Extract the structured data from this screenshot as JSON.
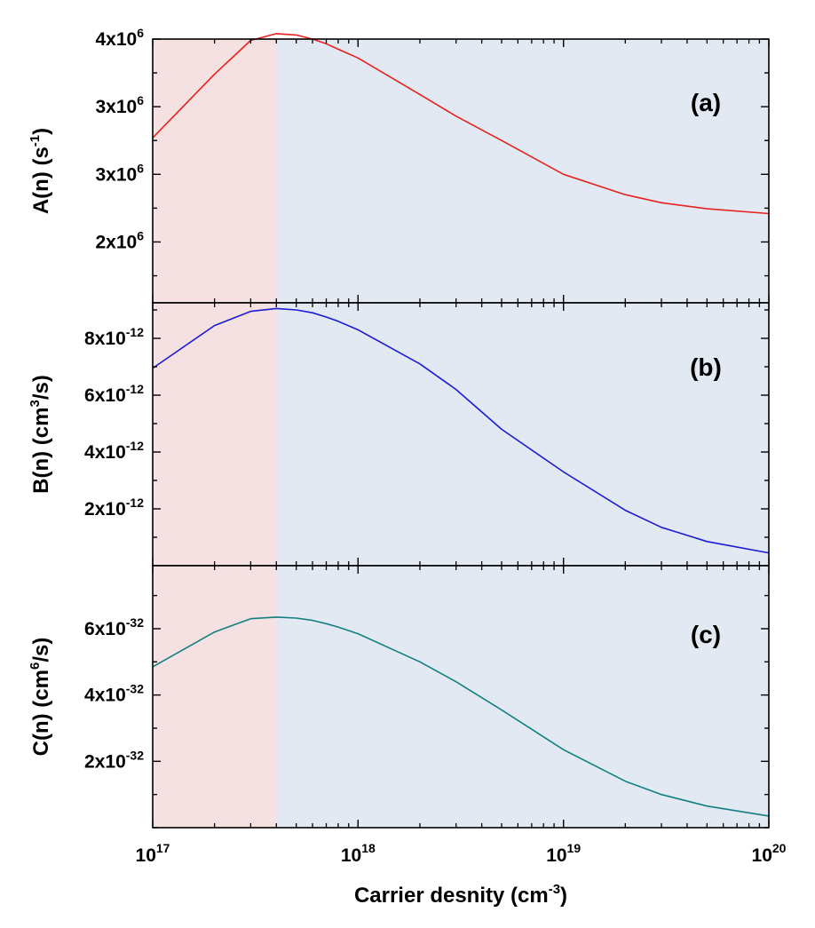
{
  "colors": {
    "shade_left": "#f5e1e1",
    "shade_right": "#e2e9f3",
    "series_a": "#e8211c",
    "series_b": "#1b1bd6",
    "series_c": "#128080",
    "axis": "#000000"
  },
  "x_axis": {
    "label_main": "Carrier desnity (cm",
    "label_exp": "-3",
    "label_close": ")",
    "scale": "log",
    "xlim": [
      1e+17,
      1e+20
    ],
    "ticks": [
      {
        "base": "10",
        "exp": "17",
        "value": 1e+17
      },
      {
        "base": "10",
        "exp": "18",
        "value": 1e+18
      },
      {
        "base": "10",
        "exp": "19",
        "value": 1e+19
      },
      {
        "base": "10",
        "exp": "20",
        "value": 1e+20
      }
    ]
  },
  "shade_boundary_x": 4e+17,
  "chart_data": [
    {
      "type": "line",
      "panel_tag": "(a)",
      "ylabel": {
        "main": "A(n) (s",
        "exp": "-1",
        "close": ")"
      },
      "ylim": [
        1550000.0,
        3500000.0
      ],
      "yticks": [
        {
          "mant": "4x10",
          "exp": "6",
          "value": 3500000.0
        },
        {
          "mant": "3x10",
          "exp": "6",
          "value": 3000000.0
        },
        {
          "mant": "3x10",
          "exp": "6",
          "value": 2500000.0
        },
        {
          "mant": "2x10",
          "exp": "6",
          "value": 2000000.0
        }
      ],
      "series": [
        {
          "color_key": "series_a",
          "x": [
            1e+17,
            2e+17,
            3e+17,
            4e+17,
            5e+17,
            6e+17,
            7e+17,
            8e+17,
            1e+18,
            2e+18,
            3e+18,
            5e+18,
            1e+19,
            2e+19,
            3e+19,
            5e+19,
            1e+20
          ],
          "y": [
            2770000.0,
            3240000.0,
            3490000.0,
            3540000.0,
            3530000.0,
            3500000.0,
            3465000.0,
            3425000.0,
            3360000.0,
            3090000.0,
            2930000.0,
            2750000.0,
            2500000.0,
            2350000.0,
            2290000.0,
            2245000.0,
            2210000.0
          ]
        }
      ]
    },
    {
      "type": "line",
      "panel_tag": "(b)",
      "ylabel": {
        "main": "B(n) (cm",
        "exp": "3",
        "close": "/s)"
      },
      "ylim": [
        0.0,
        9.25e-12
      ],
      "yticks": [
        {
          "mant": "8x10",
          "exp": "-12",
          "value": 8e-12
        },
        {
          "mant": "6x10",
          "exp": "-12",
          "value": 6e-12
        },
        {
          "mant": "4x10",
          "exp": "-12",
          "value": 4e-12
        },
        {
          "mant": "2x10",
          "exp": "-12",
          "value": 2e-12
        }
      ],
      "series": [
        {
          "color_key": "series_b",
          "x": [
            1e+17,
            2e+17,
            3e+17,
            4e+17,
            5e+17,
            6e+17,
            7e+17,
            8e+17,
            1e+18,
            2e+18,
            3e+18,
            5e+18,
            1e+19,
            2e+19,
            3e+19,
            5e+19,
            1e+20
          ],
          "y": [
            6.95e-12,
            8.45e-12,
            8.95e-12,
            9.05e-12,
            9e-12,
            8.9e-12,
            8.75e-12,
            8.6e-12,
            8.3e-12,
            7.1e-12,
            6.2e-12,
            4.8e-12,
            3.3e-12,
            1.95e-12,
            1.35e-12,
            8.5e-13,
            4.5e-13
          ]
        }
      ]
    },
    {
      "type": "line",
      "panel_tag": "(c)",
      "ylabel": {
        "main": "C(n) (cm",
        "exp": "6",
        "close": "/s)"
      },
      "ylim": [
        0.0,
        7.9e-32
      ],
      "yticks": [
        {
          "mant": "6x10",
          "exp": "-32",
          "value": 6e-32
        },
        {
          "mant": "4x10",
          "exp": "-32",
          "value": 4e-32
        },
        {
          "mant": "2x10",
          "exp": "-32",
          "value": 2e-32
        }
      ],
      "series": [
        {
          "color_key": "series_c",
          "x": [
            1e+17,
            2e+17,
            3e+17,
            4e+17,
            5e+17,
            6e+17,
            7e+17,
            8e+17,
            1e+18,
            2e+18,
            3e+18,
            5e+18,
            1e+19,
            2e+19,
            3e+19,
            5e+19,
            1e+20
          ],
          "y": [
            4.85e-32,
            5.9e-32,
            6.3e-32,
            6.35e-32,
            6.32e-32,
            6.25e-32,
            6.15e-32,
            6.05e-32,
            5.85e-32,
            5e-32,
            4.4e-32,
            3.55e-32,
            2.35e-32,
            1.4e-32,
            1e-32,
            6.5e-33,
            3.5e-33
          ]
        }
      ]
    }
  ]
}
